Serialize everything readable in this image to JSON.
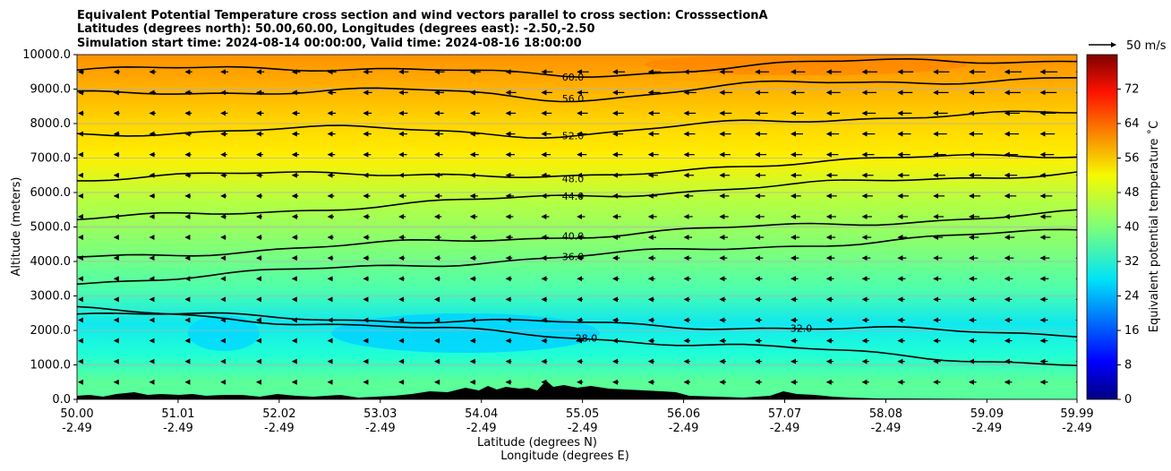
{
  "chart_data": {
    "type": "heatmap",
    "title": [
      "Equivalent Potential Temperature cross section and wind vectors parallel to cross section: CrosssectionA",
      "Latitudes (degrees north): 50.00,60.00, Longitudes (degrees east): -2.50,-2.50",
      "Simulation start time: 2024-08-14 00:00:00, Valid time: 2024-08-16 18:00:00"
    ],
    "xlabel": [
      "Latitude (degrees N)",
      "Longitude (degrees E)"
    ],
    "ylabel": "Altitude (meters)",
    "colorbar_label": "Equivalent potential temperature ˚C",
    "x_ticks": [
      {
        "lat": "50.00",
        "lon": "-2.49",
        "value": 50.0
      },
      {
        "lat": "51.01",
        "lon": "-2.49",
        "value": 51.01
      },
      {
        "lat": "52.02",
        "lon": "-2.49",
        "value": 52.02
      },
      {
        "lat": "53.03",
        "lon": "-2.49",
        "value": 53.03
      },
      {
        "lat": "54.04",
        "lon": "-2.49",
        "value": 54.04
      },
      {
        "lat": "55.05",
        "lon": "-2.49",
        "value": 55.05
      },
      {
        "lat": "56.06",
        "lon": "-2.49",
        "value": 56.06
      },
      {
        "lat": "57.07",
        "lon": "-2.49",
        "value": 57.07
      },
      {
        "lat": "58.08",
        "lon": "-2.49",
        "value": 58.08
      },
      {
        "lat": "59.09",
        "lon": "-2.49",
        "value": 59.09
      },
      {
        "lat": "59.99",
        "lon": "-2.49",
        "value": 59.99
      }
    ],
    "y_ticks": [
      "0.0",
      "1000.0",
      "2000.0",
      "3000.0",
      "4000.0",
      "5000.0",
      "6000.0",
      "7000.0",
      "8000.0",
      "9000.0",
      "10000.0"
    ],
    "xlim": [
      50.0,
      59.99
    ],
    "ylim": [
      0,
      10000
    ],
    "colorbar_ticks": [
      "0",
      "8",
      "16",
      "24",
      "32",
      "40",
      "48",
      "56",
      "64",
      "72"
    ],
    "colorbar_range": [
      0,
      80
    ],
    "colormap": "jet",
    "grid": "horizontal",
    "quiver_key": "50 m/s",
    "contour_levels": [
      {
        "label": "60.0",
        "alt_start": 9550,
        "alt_end": 9850
      },
      {
        "label": "56.0",
        "alt_start": 8850,
        "alt_end": 9300
      },
      {
        "label": "52.0",
        "alt_start": 7700,
        "alt_end": 8300
      },
      {
        "label": "48.0",
        "alt_start": 6400,
        "alt_end": 7100
      },
      {
        "label": "44.0",
        "alt_start": 5200,
        "alt_end": 6600
      },
      {
        "label": "40.0",
        "alt_start": 4100,
        "alt_end": 5400
      },
      {
        "label": "36.0",
        "alt_start": 3400,
        "alt_end": 4900
      },
      {
        "label": "32.0",
        "alt_start": 2500,
        "alt_end": 1900
      },
      {
        "label": "28.0",
        "alt_start": 2600,
        "alt_end": 1000
      }
    ]
  }
}
